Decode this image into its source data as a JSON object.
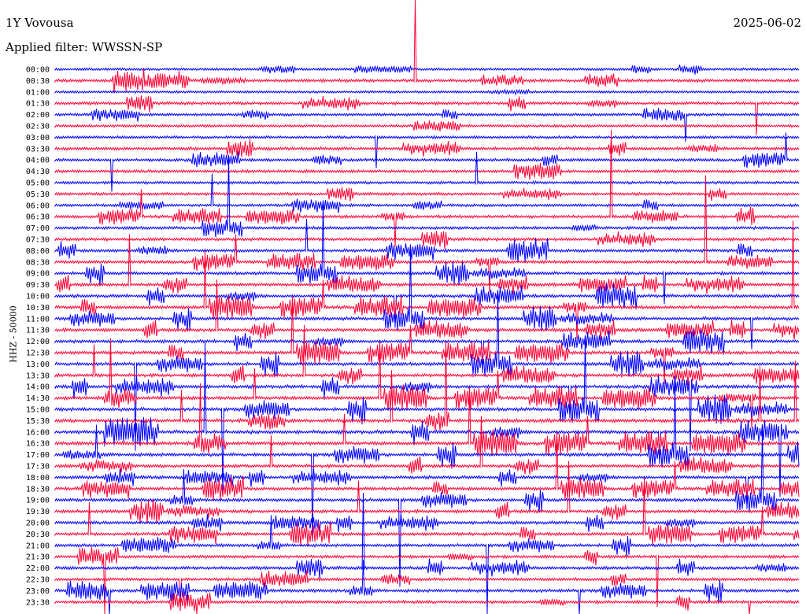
{
  "header": {
    "station": "1Y Vovousa",
    "date": "2025-06-02",
    "filter": "Applied filter: WWSSN-SP"
  },
  "chart_data": {
    "type": "line",
    "title": "1Y Vovousa",
    "ylabel": "HHZ - 50000",
    "series_colors": [
      "#0000ff",
      "#ff0033"
    ],
    "row_labels": [
      "00:00",
      "00:30",
      "01:00",
      "01:30",
      "02:00",
      "02:30",
      "03:00",
      "03:30",
      "04:00",
      "04:30",
      "05:00",
      "05:30",
      "06:00",
      "06:30",
      "07:00",
      "07:30",
      "08:00",
      "08:30",
      "09:00",
      "09:30",
      "10:00",
      "10:30",
      "11:00",
      "11:30",
      "12:00",
      "12:30",
      "13:00",
      "13:30",
      "14:00",
      "14:30",
      "15:00",
      "15:30",
      "16:00",
      "16:30",
      "17:00",
      "17:30",
      "18:00",
      "18:30",
      "19:00",
      "19:30",
      "20:00",
      "20:30",
      "21:00",
      "21:30",
      "22:00",
      "22:30",
      "23:00",
      "23:30"
    ],
    "row_activity": [
      0.35,
      0.6,
      0.25,
      0.55,
      0.45,
      0.3,
      0.45,
      0.6,
      0.55,
      0.5,
      0.5,
      0.45,
      0.5,
      0.55,
      0.55,
      0.6,
      0.65,
      0.6,
      0.65,
      0.7,
      0.7,
      0.75,
      0.7,
      0.75,
      0.7,
      0.75,
      0.75,
      0.75,
      0.8,
      0.8,
      0.85,
      0.85,
      0.9,
      0.85,
      0.8,
      0.7,
      0.65,
      0.65,
      0.7,
      0.7,
      0.65,
      0.65,
      0.6,
      0.6,
      0.65,
      0.6,
      0.7,
      0.6
    ],
    "grid": false
  }
}
